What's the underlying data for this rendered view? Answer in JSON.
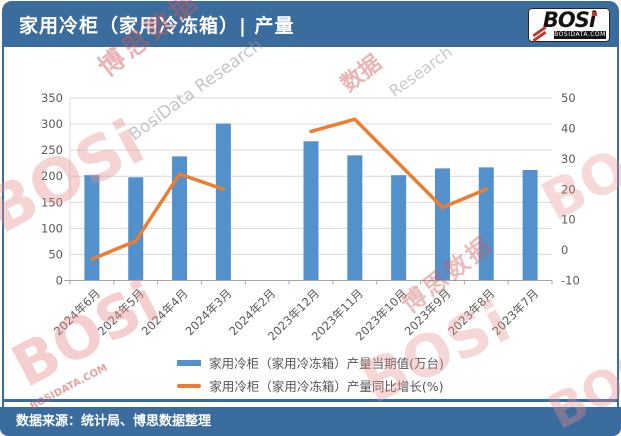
{
  "header": {
    "title": "家用冷柜（家用冷冻箱）| 产量",
    "logo": {
      "wordmark": "BOSi",
      "domain": "BOSIDATA.COM"
    }
  },
  "footer": {
    "source": "数据来源：统计局、博思数据整理"
  },
  "legend": [
    {
      "label": "家用冷柜（家用冷冻箱）产量当期值(万台)",
      "type": "bar",
      "color": "#5291cc"
    },
    {
      "label": "家用冷柜（家用冷冻箱）产量同比增长(%)",
      "type": "line",
      "color": "#ED7D31"
    }
  ],
  "colors": {
    "bar": "#5291cc",
    "line": "#ED7D31",
    "band": "#3a6d9e",
    "grid": "#d9d9d9",
    "axis_line": "#a6a6a6",
    "axis_text": "#595959"
  },
  "watermarks": [
    {
      "text": "博思数据"
    },
    {
      "text": "BosiData Research"
    },
    {
      "text": "BOSi"
    },
    {
      "text": "数据"
    },
    {
      "text": "Research"
    },
    {
      "text": "BOSi"
    },
    {
      "text": "博思数据"
    },
    {
      "text": "BOSi"
    },
    {
      "text": "BOSi"
    },
    {
      "text": "BOSIDATA.COM"
    },
    {
      "text": "BOSi"
    }
  ],
  "chart_data": {
    "type": "bar",
    "subtype": "combo-bar-line",
    "title": "家用冷柜（家用冷冻箱）| 产量",
    "categories": [
      "2024年6月",
      "2024年5月",
      "2024年4月",
      "2024年3月",
      "2024年2月",
      "2023年12月",
      "2023年11月",
      "2023年10月",
      "2023年9月",
      "2023年8月",
      "2023年7月"
    ],
    "series": [
      {
        "name": "家用冷柜（家用冷冻箱）产量当期值(万台)",
        "type": "bar",
        "axis": "left",
        "values": [
          202,
          198,
          238,
          301,
          null,
          267,
          240,
          202,
          215,
          217,
          212
        ]
      },
      {
        "name": "家用冷柜（家用冷冻箱）产量同比增长(%)",
        "type": "line",
        "axis": "right",
        "values": [
          -3,
          3,
          25,
          20,
          null,
          39,
          43,
          28.5,
          14,
          20,
          null
        ]
      }
    ],
    "left_axis": {
      "min": 0,
      "max": 350,
      "step": 50
    },
    "right_axis": {
      "min": -10,
      "max": 50,
      "step": 10
    },
    "grid": true,
    "legend_position": "bottom",
    "x_tick_rotation": -45
  }
}
